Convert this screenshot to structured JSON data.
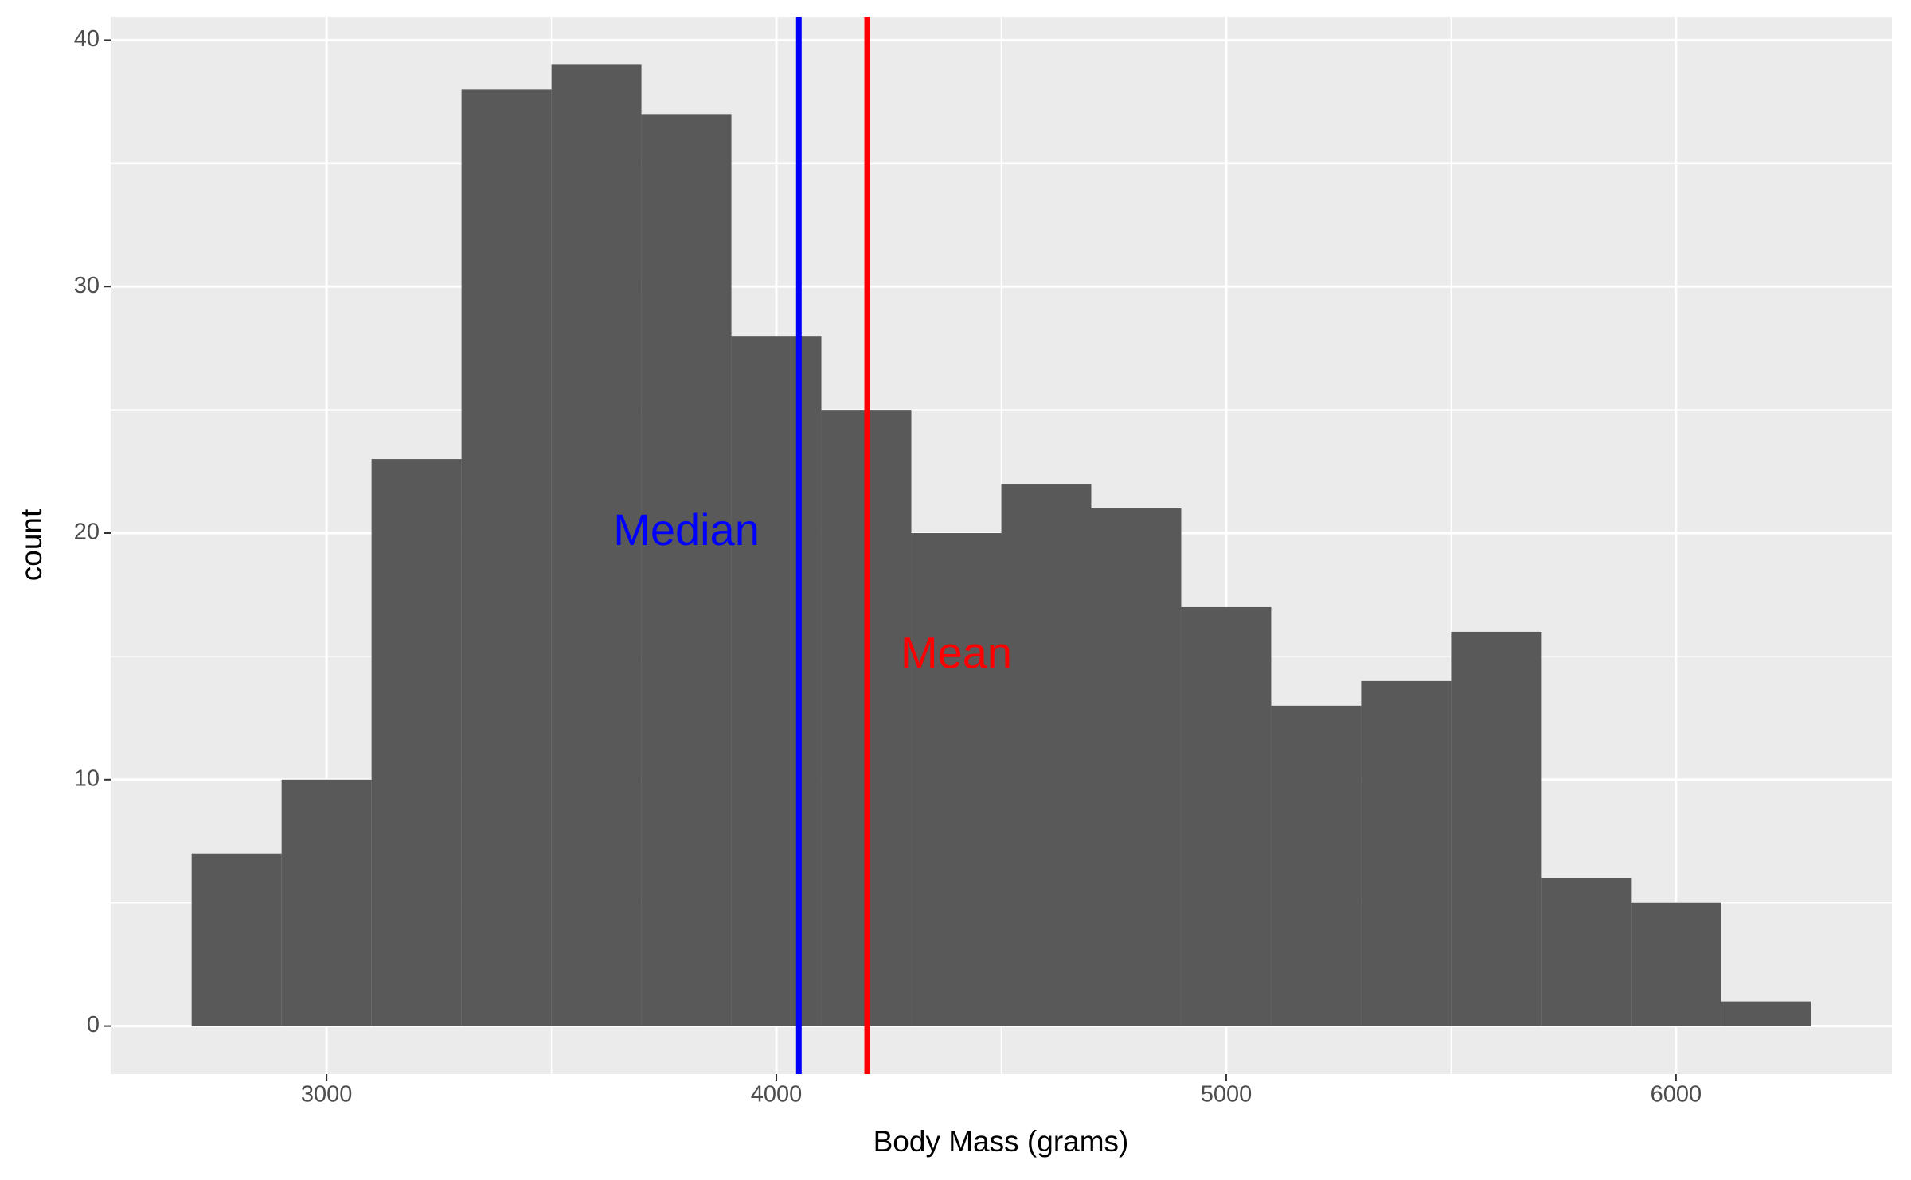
{
  "chart_data": {
    "type": "histogram",
    "x_label": "Body Mass (grams)",
    "y_label": "count",
    "bins": [
      2700,
      2900,
      3100,
      3300,
      3500,
      3700,
      3900,
      4100,
      4300,
      4500,
      4700,
      4900,
      5100,
      5300,
      5500,
      5700,
      5900,
      6100,
      6300
    ],
    "values": [
      7,
      10,
      23,
      38,
      39,
      37,
      28,
      25,
      20,
      22,
      21,
      17,
      13,
      14,
      16,
      6,
      5,
      1
    ],
    "color": "#595959",
    "xlim": [
      2520,
      6480
    ],
    "xticks": [
      3000,
      4000,
      5000,
      6000
    ],
    "x_minor_ticks": [
      3500,
      4500,
      5500
    ],
    "ylim": [
      -1.95,
      40.95
    ],
    "yticks": [
      0,
      10,
      20,
      30,
      40
    ],
    "y_minor_ticks": [
      5,
      15,
      25,
      35
    ],
    "grid": true,
    "vlines": [
      {
        "x": 4050,
        "color": "#0000ff"
      },
      {
        "x": 4201.75,
        "color": "#ff0000"
      }
    ],
    "annotations": [
      {
        "text": "Median",
        "x": 3800,
        "y": 20,
        "color": "#0000ff"
      },
      {
        "text": "Mean",
        "x": 4400,
        "y": 15,
        "color": "#ff0000"
      }
    ]
  }
}
